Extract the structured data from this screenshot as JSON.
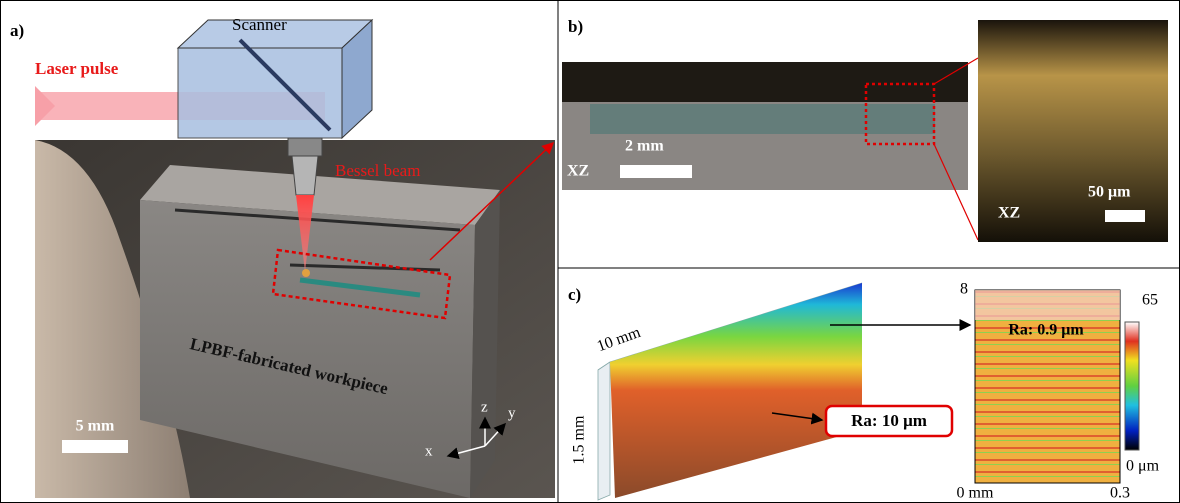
{
  "panels": {
    "a": {
      "label": "a)",
      "laser": "Laser pulse",
      "scanner": "Scanner",
      "beam": "Bessel beam",
      "workpiece": "LPBF-fabricated workpiece",
      "scale": "5 mm",
      "axes": {
        "z": "z",
        "y": "y",
        "x": "x"
      }
    },
    "b": {
      "label": "b)",
      "scale_left": "2 mm",
      "view_left": "XZ",
      "scale_right": "50 μm",
      "view_right": "XZ"
    },
    "c": {
      "label": "c)",
      "length": "10 mm",
      "height": "1.5 mm",
      "ra_side": "Ra: 10 μm",
      "ra_top": "Ra: 0.9 μm",
      "y_max": "8",
      "cbar_max": "65",
      "cbar_min": "0 μm",
      "x_min": "0 mm",
      "x_max": "0.3"
    }
  }
}
